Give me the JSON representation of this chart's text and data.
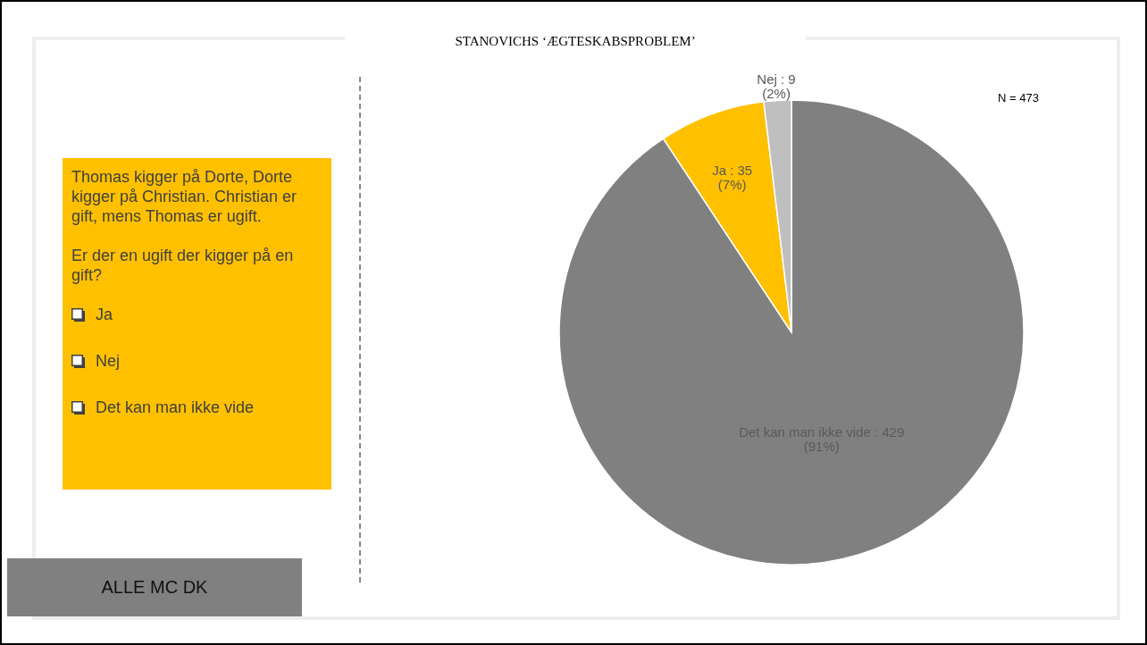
{
  "chart_data": [
    {
      "type": "pie",
      "title": "STANOVICHS ‘ÆGTESKABSPROBLEM’",
      "categories": [
        "Det kan man ikke vide",
        "Ja",
        "Nej"
      ],
      "values": [
        429,
        35,
        9
      ],
      "colors": [
        "#808080",
        "#ffc000",
        "#bfbfbf"
      ],
      "value_labels": [
        ": 429\n(91%)",
        ": 35\n(7%)",
        ": 9\n(2%)"
      ],
      "annotations": [
        "N = 473"
      ]
    },
    {
      "type": "other",
      "annotations": [
        "Thomas kigger på Dorte, Dorte kigger på Christian. Christian er gift, mens Thomas er ugift.",
        "Er der en ugift der kigger på en gift?"
      ],
      "categories": [
        "Ja",
        "Nej",
        "Det kan man ikke vide"
      ]
    },
    {
      "type": "other",
      "annotations": [
        "ALLE MC DK"
      ]
    }
  ]
}
